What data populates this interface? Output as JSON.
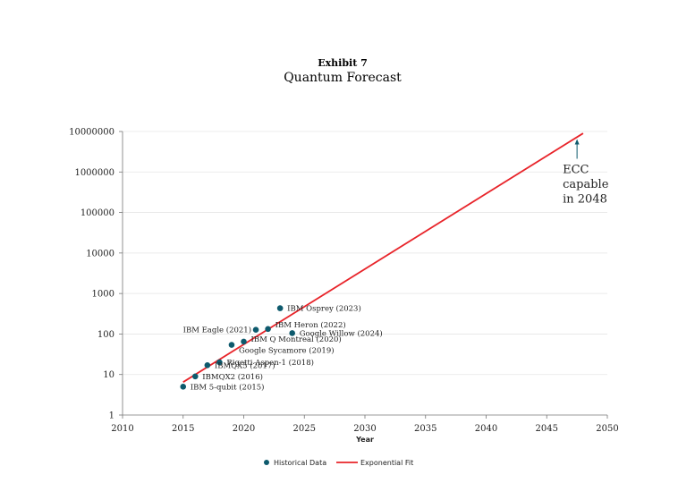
{
  "header": {
    "exhibit": "Exhibit 7",
    "title": "Quantum Forecast"
  },
  "chart_data": {
    "type": "scatter",
    "xlabel": "Year",
    "ylabel": "",
    "xlim": [
      2010,
      2050
    ],
    "ylim": [
      1,
      10000000
    ],
    "yscale": "log",
    "x_ticks": [
      "2010",
      "2015",
      "2020",
      "2025",
      "2030",
      "2035",
      "2040",
      "2045",
      "2050"
    ],
    "y_ticks": [
      "1",
      "10",
      "100",
      "1000",
      "10000",
      "100000",
      "1000000",
      "10000000"
    ],
    "grid": true,
    "legend_position": "bottom-center",
    "series": [
      {
        "name": "Historical Data",
        "kind": "scatter",
        "color": "#0e5a6d",
        "points": [
          {
            "x": 2015,
            "y": 5,
            "label": "IBM 5-qubit (2015)"
          },
          {
            "x": 2016,
            "y": 9,
            "label": "IBMQX2 (2016)"
          },
          {
            "x": 2017,
            "y": 17,
            "label": "IBMQX5 (2017)"
          },
          {
            "x": 2018,
            "y": 20,
            "label": "Rigetti Aspen-1 (2018)"
          },
          {
            "x": 2019,
            "y": 54,
            "label": "Google Sycamore (2019)"
          },
          {
            "x": 2020,
            "y": 65,
            "label": "IBM Q Montreal (2020)"
          },
          {
            "x": 2021,
            "y": 127,
            "label": "IBM Eagle (2021)"
          },
          {
            "x": 2022,
            "y": 133,
            "label": "IBM Heron (2022)"
          },
          {
            "x": 2023,
            "y": 433,
            "label": "IBM Osprey (2023)"
          },
          {
            "x": 2024,
            "y": 105,
            "label": "Google Willow (2024)"
          }
        ]
      },
      {
        "name": "Exponential Fit",
        "kind": "line",
        "color": "#e8242a",
        "x": [
          2015,
          2048
        ],
        "y": [
          6.5,
          9000000
        ]
      }
    ],
    "annotation": {
      "lines": [
        "ECC",
        "capable",
        "in 2048"
      ],
      "x": 2047.5,
      "y": 6500000
    }
  }
}
